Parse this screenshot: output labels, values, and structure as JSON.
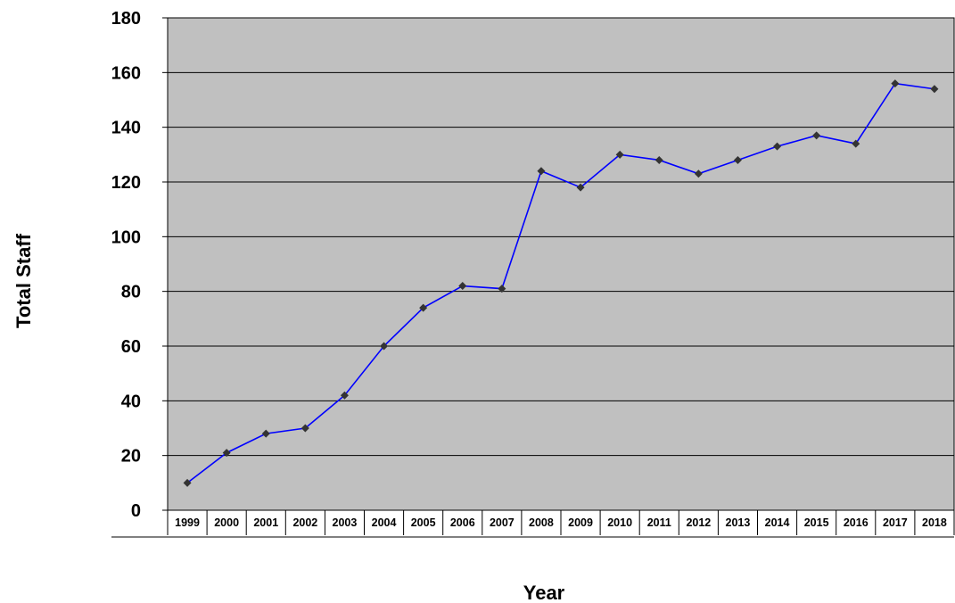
{
  "chart_data": {
    "type": "line",
    "title": "",
    "xlabel": "Year",
    "ylabel": "Total Staff",
    "ylim": [
      0,
      180
    ],
    "yticks": [
      0,
      20,
      40,
      60,
      80,
      100,
      120,
      140,
      160,
      180
    ],
    "grid": true,
    "legend": "none",
    "plot_background": "#c0c0c0",
    "line_color": "#0000ff",
    "marker_color": "#333333",
    "categories": [
      "1999",
      "2000",
      "2001",
      "2002",
      "2003",
      "2004",
      "2005",
      "2006",
      "2007",
      "2008",
      "2009",
      "2010",
      "2011",
      "2012",
      "2013",
      "2014",
      "2015",
      "2016",
      "2017",
      "2018"
    ],
    "series": [
      {
        "values": [
          10,
          21,
          28,
          30,
          42,
          60,
          74,
          82,
          81,
          124,
          118,
          130,
          128,
          123,
          128,
          133,
          137,
          134,
          156,
          154
        ]
      }
    ]
  }
}
